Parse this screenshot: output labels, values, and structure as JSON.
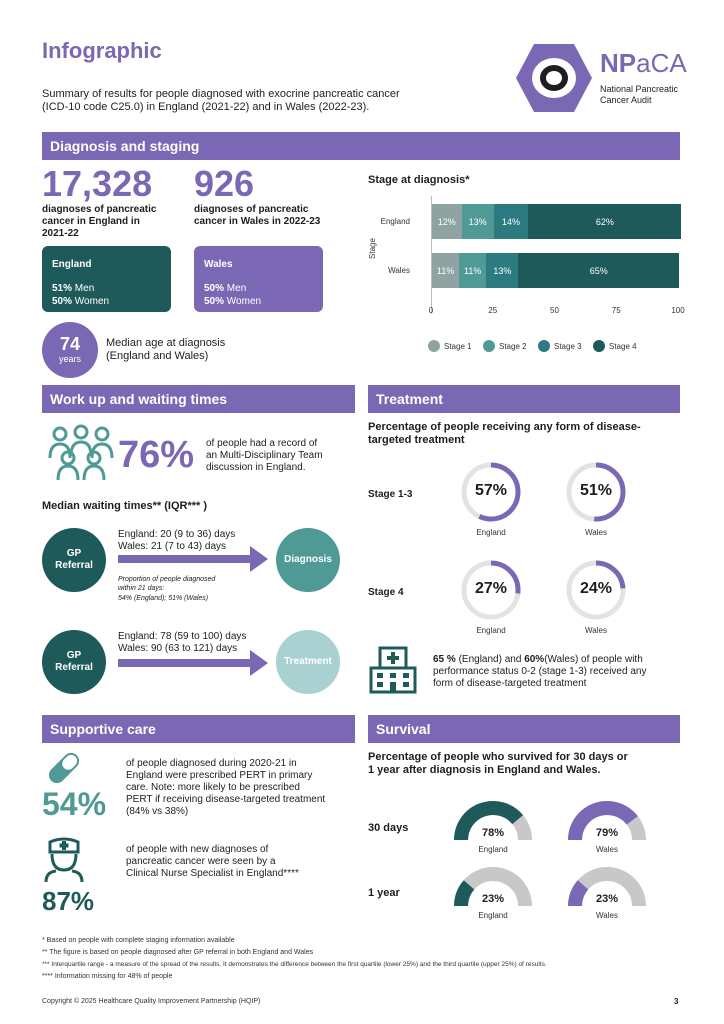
{
  "header": {
    "title": "Infographic",
    "summary_line1": "Summary of results for people diagnosed with exocrine pancreatic cancer",
    "summary_line2": "(ICD-10 code C25.0) in England (2021-22) and in Wales (2022-23).",
    "logo_abbrev_a": "NP",
    "logo_abbrev_b": "aCA",
    "logo_name_line1": "National Pancreatic",
    "logo_name_line2": "Cancer Audit"
  },
  "diagnosis": {
    "band": "Diagnosis and staging",
    "england_count": "17,328",
    "england_label_1": "diagnoses of pancreatic",
    "england_label_2": "cancer in England in",
    "england_label_3": "2021-22",
    "wales_count": "926",
    "wales_label_1": "diagnoses of pancreatic",
    "wales_label_2": "cancer in Wales in 2022-23",
    "england_box": {
      "title": "England",
      "men_pct": "51%",
      "men": "Men",
      "women_pct": "50%",
      "women": "Women"
    },
    "wales_box": {
      "title": "Wales",
      "men_pct": "50%",
      "men": "Men",
      "women_pct": "50%",
      "women": "Women"
    },
    "median_age": "74",
    "median_age_unit": "years",
    "median_age_label_1": "Median age at diagnosis",
    "median_age_label_2": "(England and Wales)"
  },
  "chart_data": {
    "type": "bar",
    "orientation": "horizontal",
    "stacked": true,
    "title": "Stage at diagnosis*",
    "ylabel": "Stage",
    "xlabel": "",
    "categories": [
      "England",
      "Wales"
    ],
    "series": [
      {
        "name": "Stage 1",
        "values": [
          12,
          11
        ],
        "labels": [
          "12%",
          "11%"
        ],
        "color": "#8fa3a3"
      },
      {
        "name": "Stage 2",
        "values": [
          13,
          11
        ],
        "labels": [
          "13%",
          "11%"
        ],
        "color": "#4f9a95"
      },
      {
        "name": "Stage 3",
        "values": [
          14,
          13
        ],
        "labels": [
          "14%",
          "13%"
        ],
        "color": "#2b7b80"
      },
      {
        "name": "Stage 4",
        "values": [
          62,
          65
        ],
        "labels": [
          "62%",
          "65%"
        ],
        "color": "#1e5a5a"
      }
    ],
    "xlim": [
      0,
      100
    ],
    "xticks": [
      "0",
      "25",
      "50",
      "75",
      "100"
    ],
    "legend": "bottom"
  },
  "workup": {
    "band": "Work up and waiting times",
    "mdt_pct": "76%",
    "mdt_text_1": "of people had a record of",
    "mdt_text_2": "an Multi-Disciplinary Team",
    "mdt_text_3": "discussion in England.",
    "median_title": "Median waiting times** (IQR*** )",
    "gp_1": "GP",
    "gp_2": "Referral",
    "diag_england": "England: 20 (9 to 36) days",
    "diag_wales": "Wales: 21 (7 to 43) days",
    "prop_1": "Proportion of people diagnosed",
    "prop_2": "within 21 days:",
    "prop_3": "54% (England); 51% (Wales)",
    "diagnosis_label": "Diagnosis",
    "treat_england": "England: 78 (59 to 100) days",
    "treat_wales": "Wales: 90 (63 to 121) days",
    "treatment_label": "Treatment"
  },
  "treatment": {
    "band": "Treatment",
    "title_1": "Percentage of people receiving any form of disease-",
    "title_2": "targeted treatment",
    "stage13": "Stage 1-3",
    "stage4": "Stage 4",
    "rings": [
      {
        "value": 57,
        "label": "57%",
        "country": "England"
      },
      {
        "value": 51,
        "label": "51%",
        "country": "Wales"
      },
      {
        "value": 27,
        "label": "27%",
        "country": "England"
      },
      {
        "value": 24,
        "label": "24%",
        "country": "Wales"
      }
    ],
    "ps_pct_e": "65 %",
    "ps_text_a": " (England) and ",
    "ps_pct_w": "60%",
    "ps_text_b": "(Wales) of people with",
    "ps_line2": "performance status 0-2 (stage 1-3) received any",
    "ps_line3": "form of disease-targeted treatment"
  },
  "supportive": {
    "band": "Supportive care",
    "pert_pct": "54%",
    "pert_1": "of people diagnosed during 2020-21 in",
    "pert_2": "England were prescribed PERT in primary",
    "pert_3": "care. Note: more likely to be prescribed",
    "pert_4": "PERT if receiving disease-targeted treatment",
    "pert_5": "(84% vs 38%)",
    "cns_pct": "87%",
    "cns_1": "of people with new diagnoses of",
    "cns_2": "pancreatic cancer were seen by a",
    "cns_3": "Clinical Nurse Specialist in England****"
  },
  "survival": {
    "band": "Survival",
    "title_1": "Percentage of people who survived for 30 days or",
    "title_2": "1 year after diagnosis in England and Wales.",
    "row_30": "30 days",
    "row_1y": "1 year",
    "gauges": [
      {
        "value": 78,
        "label": "78%",
        "country": "England",
        "color": "#1e5a5a"
      },
      {
        "value": 79,
        "label": "79%",
        "country": "Wales",
        "color": "#7b68b5"
      },
      {
        "value": 23,
        "label": "23%",
        "country": "England",
        "color": "#1e5a5a"
      },
      {
        "value": 23,
        "label": "23%",
        "country": "Wales",
        "color": "#7b68b5"
      }
    ]
  },
  "footnotes": {
    "f1": "* Based on people with complete staging information available",
    "f2": "** The figure is based on people diagnosed after GP referral in both England and Wales",
    "f3": "*** Interquartile range - a measure of the spread of the results. It demonstrates the difference between the first quartile (lower 25%) and the third quartile (upper 25%) of results.",
    "f4": "**** Information missing for 48% of people"
  },
  "footer": {
    "copyright": "Copyright © 2025 Healthcare Quality Improvement Partnership (HQIP)",
    "page": "3"
  }
}
